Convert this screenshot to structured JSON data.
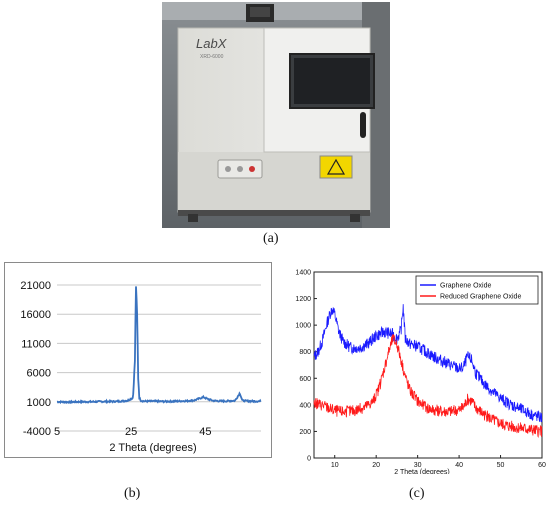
{
  "photo": {
    "logo_text": "LabX",
    "model_text": "XRD-6000"
  },
  "captions": {
    "a": "(a)",
    "b": "(b)",
    "c": "(c)"
  },
  "chart_data": [
    {
      "id": "b",
      "type": "line",
      "title": "",
      "xlabel": "2 Theta (degrees)",
      "ylabel": "",
      "xlim": [
        5,
        60
      ],
      "ylim": [
        -4000,
        21000
      ],
      "xticks": [
        5,
        25,
        45
      ],
      "yticks": [
        -4000,
        1000,
        6000,
        11000,
        16000,
        21000
      ],
      "ytick_labels": [
        "-4000",
        "1000",
        "6000",
        "11000",
        "16000",
        "21000"
      ],
      "grid": true,
      "series": [
        {
          "color": "#3a73bf",
          "x": [
            5,
            8,
            11,
            14,
            17,
            20,
            22,
            24,
            25.5,
            26,
            26.3,
            26.6,
            26.9,
            27.2,
            27.6,
            28.5,
            31,
            34,
            37,
            40,
            42,
            43.5,
            44.5,
            45.5,
            47,
            50,
            53,
            54.3,
            54.6,
            55,
            57,
            60
          ],
          "y": [
            1000,
            950,
            1000,
            1000,
            1050,
            1050,
            1100,
            1200,
            1700,
            8000,
            20800,
            16000,
            5000,
            1700,
            1200,
            1100,
            1100,
            1050,
            1100,
            1150,
            1250,
            1600,
            1800,
            1500,
            1200,
            1100,
            1200,
            2500,
            1900,
            1200,
            1100,
            1100
          ]
        }
      ]
    },
    {
      "id": "c",
      "type": "line",
      "title": "",
      "xlabel": "2 Theta (degrees)",
      "ylabel": "",
      "xlim": [
        5,
        60
      ],
      "ylim": [
        0,
        1400
      ],
      "xticks": [
        10,
        20,
        30,
        40,
        50,
        60
      ],
      "yticks": [
        0,
        200,
        400,
        600,
        800,
        1000,
        1200,
        1400
      ],
      "legend_position": "top-right",
      "grid": false,
      "series": [
        {
          "name": "Graphene Oxide",
          "color": "#1a1aff",
          "x": [
            5,
            6,
            7,
            8,
            9,
            9.5,
            10,
            11,
            12,
            13,
            14,
            16,
            18,
            20,
            22,
            24,
            25,
            26,
            26.5,
            27,
            28,
            30,
            32,
            34,
            36,
            38,
            40,
            41,
            42,
            43,
            44,
            46,
            48,
            50,
            52,
            54,
            56,
            58,
            60
          ],
          "y": [
            760,
            800,
            880,
            1000,
            1100,
            1120,
            1080,
            950,
            880,
            850,
            830,
            830,
            860,
            920,
            950,
            930,
            900,
            960,
            1150,
            900,
            860,
            840,
            800,
            760,
            730,
            700,
            670,
            680,
            760,
            740,
            640,
            560,
            500,
            450,
            410,
            380,
            350,
            320,
            300
          ]
        },
        {
          "name": "Reduced Graphene Oxide",
          "color": "#ff1a1a",
          "x": [
            5,
            7,
            9,
            11,
            13,
            15,
            17,
            19,
            20,
            21,
            22,
            23,
            24,
            25,
            26,
            27,
            28,
            29,
            30,
            32,
            34,
            36,
            38,
            40,
            41,
            42,
            43,
            44,
            46,
            48,
            50,
            52,
            54,
            56,
            58,
            60
          ],
          "y": [
            410,
            400,
            370,
            350,
            350,
            360,
            380,
            420,
            470,
            560,
            680,
            800,
            900,
            860,
            740,
            620,
            520,
            470,
            430,
            380,
            360,
            350,
            350,
            360,
            380,
            440,
            430,
            380,
            330,
            290,
            260,
            240,
            230,
            220,
            210,
            200
          ]
        }
      ]
    }
  ]
}
